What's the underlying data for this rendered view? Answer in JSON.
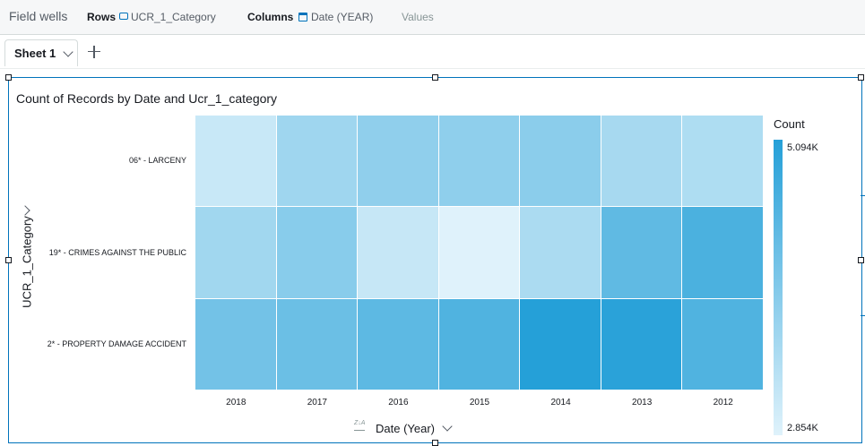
{
  "field_wells": {
    "title": "Field wells",
    "rows_label": "Rows",
    "rows_value": "UCR_1_Category",
    "columns_label": "Columns",
    "columns_value": "Date (YEAR)",
    "values_label": "Values"
  },
  "tabs": [
    {
      "label": "Sheet 1"
    }
  ],
  "visual": {
    "title": "Count of Records by Date and Ucr_1_category",
    "y_title": "UCR_1_Category",
    "x_title": "Date (Year)",
    "legend_title": "Count",
    "legend_max": "5.094K",
    "legend_min": "2.854K"
  },
  "colors": {
    "accent": "#0073bb",
    "scale_low": "#dff2fb",
    "scale_high": "#25a0d8"
  },
  "chart_data": {
    "type": "heatmap",
    "x": [
      "2018",
      "2017",
      "2016",
      "2015",
      "2014",
      "2013",
      "2012"
    ],
    "y": [
      "06* - LARCENY",
      "19* - CRIMES AGAINST THE PUBLIC",
      "2* - PROPERTY DAMAGE ACCIDENT"
    ],
    "values": [
      [
        3130,
        3620,
        3800,
        3820,
        3870,
        3530,
        3440
      ],
      [
        3600,
        3900,
        3150,
        2860,
        3480,
        4380,
        4640
      ],
      [
        4160,
        4250,
        4420,
        4580,
        5094,
        5030,
        4580
      ]
    ],
    "min": 2854,
    "max": 5094,
    "legend": "right"
  }
}
